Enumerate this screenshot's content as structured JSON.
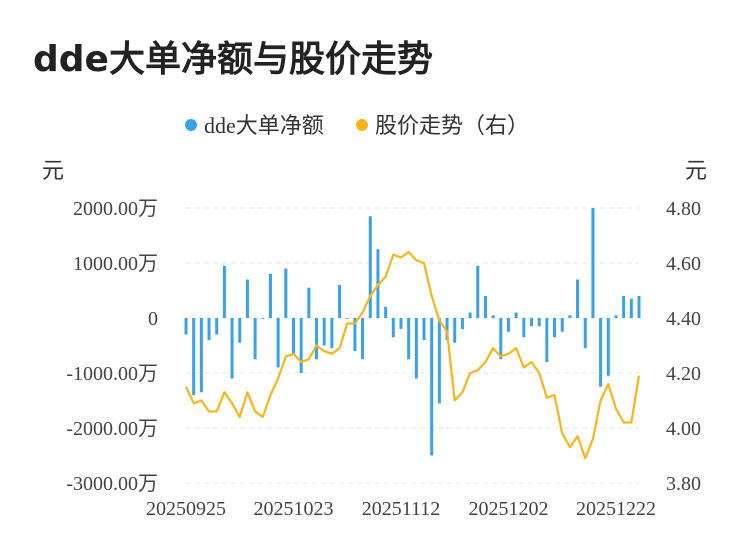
{
  "title": "dde大单净额与股价走势",
  "chart_data": {
    "type": "bar+line",
    "title": "dde大单净额与股价走势",
    "legend": {
      "placement": "top-center",
      "items": [
        {
          "name": "dde大单净额",
          "color": "#3aa0e8"
        },
        {
          "name": "股价走势（右）",
          "color": "#f5b61c"
        }
      ]
    },
    "left_axis": {
      "unit": "元",
      "range": [
        -3000,
        2000
      ],
      "ticks": [
        2000,
        1000,
        0,
        -1000,
        -2000,
        -3000
      ],
      "tick_labels": [
        "2000.00万",
        "1000.00万",
        "0",
        "-1000.00万",
        "-2000.00万",
        "-3000.00万"
      ]
    },
    "right_axis": {
      "unit": "元",
      "range": [
        3.8,
        4.8
      ],
      "ticks": [
        4.8,
        4.6,
        4.4,
        4.2,
        4.0,
        3.8
      ],
      "tick_labels": [
        "4.80",
        "4.60",
        "4.40",
        "4.20",
        "4.00",
        "3.80"
      ]
    },
    "x_tick_labels": [
      {
        "index": 0,
        "label": "20250925"
      },
      {
        "index": 14,
        "label": "20251023"
      },
      {
        "index": 28,
        "label": "20251112"
      },
      {
        "index": 42,
        "label": "20251202"
      },
      {
        "index": 56,
        "label": "20251222"
      }
    ],
    "grid": true,
    "series": [
      {
        "name": "dde大单净额",
        "type": "bar",
        "color": "#3aa0e8",
        "values": [
          -300,
          -1400,
          -1350,
          -400,
          -300,
          950,
          -1100,
          -450,
          700,
          -750,
          0,
          800,
          -900,
          900,
          -650,
          -1000,
          550,
          -750,
          -500,
          -550,
          600,
          0,
          -600,
          -750,
          1850,
          1250,
          200,
          -350,
          -200,
          -750,
          -1100,
          -400,
          -2500,
          -1550,
          -400,
          -450,
          -200,
          100,
          950,
          400,
          50,
          -750,
          -250,
          100,
          -350,
          -150,
          -150,
          -800,
          -350,
          -250,
          50,
          700,
          -550,
          2000,
          -1250,
          -1050,
          50,
          400,
          350,
          400
        ]
      },
      {
        "name": "股价走势（右）",
        "type": "line",
        "color": "#f5b61c",
        "values": [
          4.15,
          4.09,
          4.1,
          4.06,
          4.06,
          4.13,
          4.09,
          4.04,
          4.13,
          4.06,
          4.04,
          4.12,
          4.18,
          4.26,
          4.27,
          4.24,
          4.25,
          4.3,
          4.28,
          4.27,
          4.29,
          4.38,
          4.38,
          4.42,
          4.48,
          4.52,
          4.55,
          4.63,
          4.62,
          4.64,
          4.61,
          4.6,
          4.48,
          4.39,
          4.35,
          4.1,
          4.13,
          4.2,
          4.21,
          4.24,
          4.29,
          4.26,
          4.27,
          4.29,
          4.22,
          4.24,
          4.2,
          4.11,
          4.12,
          3.98,
          3.93,
          3.97,
          3.89,
          3.96,
          4.1,
          4.16,
          4.07,
          4.02,
          4.02,
          4.19
        ]
      }
    ]
  }
}
